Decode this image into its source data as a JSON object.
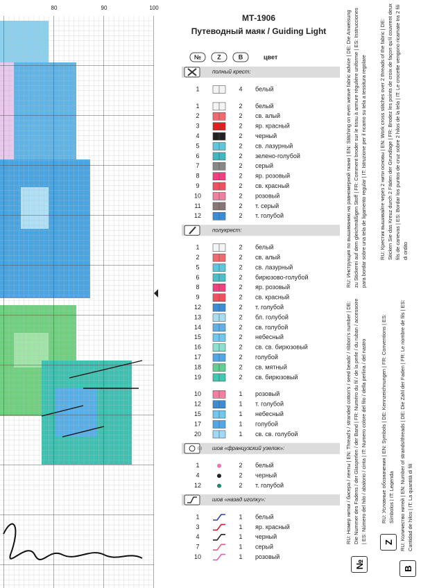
{
  "axis_numbers": [
    "80",
    "90",
    "100"
  ],
  "header": {
    "code": "МТ-1906",
    "title": "Путеводный маяк / Guiding Light"
  },
  "columns": [
    "№",
    "Z",
    "B",
    "цвет"
  ],
  "sections": [
    {
      "label": "полный крест:",
      "kind": "cross",
      "groups": [
        [
          {
            "n": 1,
            "b": 4,
            "name": "белый",
            "color": "#f4f4f4"
          }
        ],
        [
          {
            "n": 1,
            "b": 2,
            "name": "белый",
            "color": "#f4f4f4"
          },
          {
            "n": 2,
            "b": 2,
            "name": "св. алый",
            "color": "#f06a70"
          },
          {
            "n": 3,
            "b": 2,
            "name": "яр. красный",
            "color": "#e02020"
          },
          {
            "n": 4,
            "b": 2,
            "name": "черный",
            "color": "#222222"
          },
          {
            "n": 5,
            "b": 2,
            "name": "св. лазурный",
            "color": "#5cc8e0"
          },
          {
            "n": 6,
            "b": 2,
            "name": "зелено-голубой",
            "color": "#40b8c0"
          },
          {
            "n": 7,
            "b": 2,
            "name": "серый",
            "color": "#888888"
          },
          {
            "n": 8,
            "b": 2,
            "name": "яр. розовый",
            "color": "#f04080"
          },
          {
            "n": 9,
            "b": 2,
            "name": "св. красный",
            "color": "#f05060"
          },
          {
            "n": 10,
            "b": 2,
            "name": "розовый",
            "color": "#f080a0"
          },
          {
            "n": 11,
            "b": 2,
            "name": "т. серый",
            "color": "#887777"
          },
          {
            "n": 12,
            "b": 2,
            "name": "т. голубой",
            "color": "#3a8ed8"
          }
        ]
      ]
    },
    {
      "label": "полукрест:",
      "kind": "half",
      "groups": [
        [
          {
            "n": 1,
            "b": 2,
            "name": "белый",
            "color": "#f4f4f4"
          },
          {
            "n": 2,
            "b": 2,
            "name": "св. алый",
            "color": "#f06a70"
          },
          {
            "n": 5,
            "b": 2,
            "name": "св. лазурный",
            "color": "#5cc8e0"
          },
          {
            "n": 6,
            "b": 2,
            "name": "бирюзово-голубой",
            "color": "#4ac0c8"
          },
          {
            "n": 8,
            "b": 2,
            "name": "яр. розовый",
            "color": "#f04080"
          },
          {
            "n": 9,
            "b": 2,
            "name": "св. красный",
            "color": "#f05060"
          },
          {
            "n": 12,
            "b": 2,
            "name": "т. голубой",
            "color": "#3a8ed8"
          },
          {
            "n": 13,
            "b": 2,
            "name": "бл. голубой",
            "color": "#a8dcef"
          },
          {
            "n": 14,
            "b": 2,
            "name": "св. голубой",
            "color": "#60b0e8"
          },
          {
            "n": 15,
            "b": 2,
            "name": "небесный",
            "color": "#70c8f0"
          },
          {
            "n": 16,
            "b": 2,
            "name": "св. св. бирюзовый",
            "color": "#8ce0d0"
          },
          {
            "n": 17,
            "b": 2,
            "name": "голубой",
            "color": "#50a8e8"
          },
          {
            "n": 18,
            "b": 2,
            "name": "св. мятный",
            "color": "#60d090"
          },
          {
            "n": 19,
            "b": 2,
            "name": "св. бирюзовый",
            "color": "#40c8b0"
          }
        ],
        [
          {
            "n": 10,
            "b": 1,
            "name": "розовый",
            "color": "#f080a0"
          },
          {
            "n": 12,
            "b": 1,
            "name": "т. голубой",
            "color": "#3a8ed8"
          },
          {
            "n": 15,
            "b": 1,
            "name": "небесный",
            "color": "#70c8f0"
          },
          {
            "n": 17,
            "b": 1,
            "name": "голубой",
            "color": "#50a8e8"
          },
          {
            "n": 20,
            "b": 1,
            "name": "св. св. голубой",
            "color": "#a0d8f8"
          }
        ]
      ]
    },
    {
      "label": "шов «французский узелок»:",
      "icon_note": "(1)",
      "kind": "knot",
      "groups": [
        [
          {
            "n": 1,
            "b": 2,
            "name": "белый",
            "color": "#f070b0"
          },
          {
            "n": 4,
            "b": 2,
            "name": "черный",
            "color": "#222222"
          },
          {
            "n": 12,
            "b": 2,
            "name": "т. голубой",
            "color": "#208870"
          }
        ]
      ]
    },
    {
      "label": "шов «назад иголку»:",
      "kind": "back",
      "groups": [
        [
          {
            "n": 1,
            "b": 1,
            "name": "белый",
            "color": "#3040a0"
          },
          {
            "n": 3,
            "b": 1,
            "name": "яр. красный",
            "color": "#d02030"
          },
          {
            "n": 4,
            "b": 1,
            "name": "черный",
            "color": "#222222"
          },
          {
            "n": 7,
            "b": 1,
            "name": "серый",
            "color": "#e06080"
          },
          {
            "n": 10,
            "b": 1,
            "name": "розовый",
            "color": "#e060c0"
          }
        ]
      ]
    }
  ],
  "side": {
    "instruction": "RU: Инструкция по вышиванию на равномерной ткани | EN: Stitching on even weave fabric advice | DE: Die Anweisung zu Stickerei auf dem gleichmäßigen Stoff | FR: Comment broder sur le tissu à armure régulière uniforme | ES: Instrucciones para bordar sobre una tela de ligamento regular | IT: Istruzione per il ricamo su tela a tessitura regolare",
    "cross": "RU: Крестик вышивайте через 2 нити основы | EN: Work cross stitches over 2 threads of the fabric | DE: Sticken Sie das Kreuz durch 2 Fäden der Grundlage | FR: Brodez les points de croix de façon qu'il couvrent deux fils de canevas | ES: Bordar los puntos de cruz sobre 2 hilos de la tela | IT: Le crocette vengono ricamate tra 2 fili di ordito",
    "number": "RU: Номер нитки / бисера / ленты | EN: Thread's / stranded cotton's / seed beads' / ribbon's number | DE: Die Nummer des Fadens / der Glasperlen / der Band | FR: Numéro du fil / de la perle / du ruban / accessoire | ES: Número del hilo / abalorio / cinta | IT: Numero colore del filo / della perlina / del nastro",
    "symbols": "RU: Условные обозначения | EN: Symbols | DE: Kennzeichnungen | FR: Conventions | ES: Símbolos | IT: Legenda",
    "strands": "RU: Количество нитей | EN: Number of strands/threads | DE: Die Zahl der Faden | FR: Le nombre de fils | ES: Cantidad de hilos | IT: La quantità di fili",
    "box_number": "№",
    "box_symbols": "Z",
    "box_strands": "B"
  }
}
